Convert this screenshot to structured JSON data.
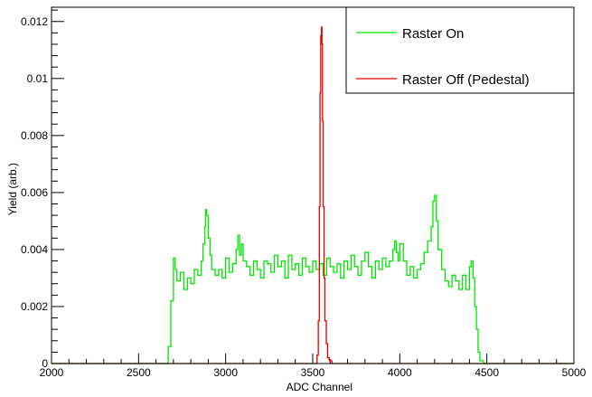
{
  "chart_data": {
    "type": "line",
    "xlabel": "ADC Channel",
    "ylabel": "Yield (arb.)",
    "xlim": [
      2000,
      5000
    ],
    "ylim": [
      0,
      0.0125
    ],
    "x_ticks": [
      2000,
      2500,
      3000,
      3500,
      4000,
      4500,
      5000
    ],
    "x_tick_labels": [
      "2000",
      "2500",
      "3000",
      "3500",
      "4000",
      "4500",
      "5000"
    ],
    "y_ticks": [
      0,
      0.002,
      0.004,
      0.006,
      0.008,
      0.01,
      0.012
    ],
    "y_tick_labels": [
      "0",
      "0.002",
      "0.004",
      "0.006",
      "0.008",
      "0.01",
      "0.012"
    ],
    "grid": false,
    "legend_position": "top-right",
    "series": [
      {
        "name": "Raster On",
        "color": "#00e600",
        "x": [
          2000,
          2600,
          2650,
          2670,
          2685,
          2700,
          2710,
          2720,
          2740,
          2760,
          2780,
          2800,
          2820,
          2840,
          2860,
          2870,
          2880,
          2885,
          2890,
          2900,
          2910,
          2920,
          2940,
          2960,
          2980,
          3000,
          3020,
          3040,
          3060,
          3070,
          3080,
          3090,
          3100,
          3120,
          3140,
          3160,
          3180,
          3200,
          3220,
          3240,
          3260,
          3280,
          3300,
          3320,
          3340,
          3360,
          3380,
          3400,
          3420,
          3440,
          3460,
          3480,
          3500,
          3520,
          3540,
          3560,
          3580,
          3600,
          3620,
          3640,
          3660,
          3680,
          3700,
          3720,
          3740,
          3760,
          3780,
          3800,
          3820,
          3840,
          3860,
          3880,
          3900,
          3920,
          3940,
          3960,
          3970,
          3980,
          3990,
          4000,
          4020,
          4040,
          4060,
          4080,
          4100,
          4120,
          4140,
          4160,
          4180,
          4190,
          4200,
          4210,
          4220,
          4240,
          4260,
          4280,
          4300,
          4320,
          4340,
          4360,
          4380,
          4400,
          4410,
          4420,
          4430,
          4440,
          4450,
          4460,
          4480,
          5000
        ],
        "y": [
          0,
          0,
          0,
          0.0006,
          0.0022,
          0.0037,
          0.0033,
          0.0029,
          0.0032,
          0.0026,
          0.003,
          0.0028,
          0.0033,
          0.0031,
          0.0036,
          0.0042,
          0.0048,
          0.0054,
          0.0052,
          0.0044,
          0.0038,
          0.0033,
          0.0031,
          0.0033,
          0.003,
          0.0037,
          0.0032,
          0.0035,
          0.004,
          0.0045,
          0.0038,
          0.0042,
          0.0036,
          0.0034,
          0.0031,
          0.0036,
          0.0033,
          0.003,
          0.0036,
          0.0035,
          0.0032,
          0.0038,
          0.0034,
          0.0036,
          0.003,
          0.0038,
          0.0033,
          0.0035,
          0.0031,
          0.0037,
          0.0034,
          0.0032,
          0.0036,
          0.0033,
          0.0035,
          0.0031,
          0.0037,
          0.0034,
          0.0032,
          0.0035,
          0.003,
          0.0036,
          0.0033,
          0.0038,
          0.0034,
          0.0031,
          0.0036,
          0.0039,
          0.0034,
          0.003,
          0.0036,
          0.0033,
          0.0037,
          0.0034,
          0.0036,
          0.004,
          0.0043,
          0.0039,
          0.0036,
          0.0042,
          0.0036,
          0.0031,
          0.0034,
          0.003,
          0.0033,
          0.0035,
          0.0039,
          0.0043,
          0.0048,
          0.0057,
          0.0059,
          0.005,
          0.004,
          0.0033,
          0.0029,
          0.0027,
          0.0031,
          0.0029,
          0.0026,
          0.0031,
          0.0026,
          0.0034,
          0.0036,
          0.003,
          0.002,
          0.0012,
          0.0004,
          0.0001,
          0,
          0
        ]
      },
      {
        "name": "Raster Off (Pedestal)",
        "color": "#e60000",
        "x": [
          2000,
          3500,
          3515,
          3525,
          3532,
          3538,
          3542,
          3546,
          3550,
          3553,
          3556,
          3560,
          3565,
          3570,
          3578,
          3585,
          3595,
          3610,
          5000
        ],
        "y": [
          0,
          0,
          0,
          0.0003,
          0.0015,
          0.0055,
          0.0095,
          0.0115,
          0.0118,
          0.0112,
          0.0085,
          0.0055,
          0.003,
          0.0015,
          0.0007,
          0.0002,
          0.0001,
          0,
          0
        ]
      }
    ]
  }
}
